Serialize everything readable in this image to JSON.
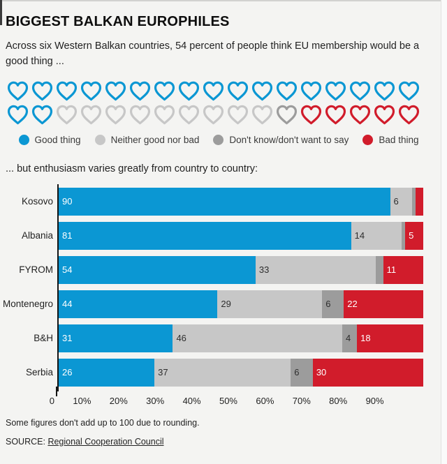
{
  "header": {
    "title": "BIGGEST BALKAN EUROPHILES",
    "subtitle": "Across six Western Balkan countries, 54 percent of people think EU membership would be a good thing ...",
    "transition": "... but enthusiasm varies greatly from country to country:"
  },
  "colors": {
    "good": "#0b97d3",
    "neither": "#c7c7c7",
    "dont_know": "#9c9c9c",
    "bad": "#d11c2b",
    "background": "#f4f4f2",
    "axis": "#141414"
  },
  "hearts": {
    "row1": [
      "good",
      "good",
      "good",
      "good",
      "good",
      "good",
      "good",
      "good",
      "good",
      "good",
      "good",
      "good",
      "good",
      "good",
      "good",
      "good",
      "good"
    ],
    "row2": [
      "good",
      "good",
      "neither",
      "neither",
      "neither",
      "neither",
      "neither",
      "neither",
      "neither",
      "neither",
      "neither",
      "dont_know",
      "bad",
      "bad",
      "bad",
      "bad",
      "bad"
    ]
  },
  "legend": {
    "items": [
      {
        "key": "good",
        "label": "Good thing"
      },
      {
        "key": "neither",
        "label": "Neither good nor bad"
      },
      {
        "key": "dont_know",
        "label": "Don't know/don't want to say"
      },
      {
        "key": "bad",
        "label": "Bad thing"
      }
    ]
  },
  "chart_data": {
    "type": "bar",
    "orientation": "horizontal",
    "stacked": true,
    "categories": [
      "Kosovo",
      "Albania",
      "FYROM",
      "Montenegro",
      "B&H",
      "Serbia"
    ],
    "series": [
      {
        "name": "Good thing",
        "key": "good",
        "values": [
          90,
          81,
          54,
          44,
          31,
          26
        ]
      },
      {
        "name": "Neither good nor bad",
        "key": "neither",
        "values": [
          6,
          14,
          33,
          29,
          46,
          37
        ]
      },
      {
        "name": "Don't know/don't want to say",
        "key": "dont_know",
        "values": [
          1,
          1,
          2,
          6,
          4,
          6
        ]
      },
      {
        "name": "Bad thing",
        "key": "bad",
        "values": [
          2,
          5,
          11,
          22,
          18,
          30
        ]
      }
    ],
    "labeled_min_value": 4,
    "x_ticks": [
      "0",
      "10%",
      "20%",
      "30%",
      "40%",
      "50%",
      "60%",
      "70%",
      "80%",
      "90%"
    ],
    "x_tick_positions": [
      0,
      10,
      20,
      30,
      40,
      50,
      60,
      70,
      80,
      90
    ],
    "xlim": [
      0,
      100
    ],
    "title": "BIGGEST BALKAN EUROPHILES",
    "xlabel": "",
    "ylabel": ""
  },
  "footer": {
    "note": "Some figures don't add up to 100 due to rounding.",
    "source_label": "SOURCE:",
    "source_link": "Regional Cooperation Council"
  }
}
